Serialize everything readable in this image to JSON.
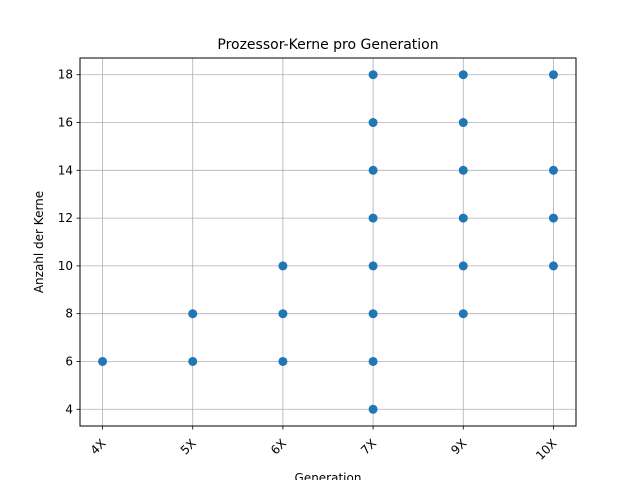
{
  "chart_data": {
    "type": "scatter",
    "title": "Prozessor-Kerne pro Generation",
    "xlabel": "Generation",
    "ylabel": "Anzahl der Kerne",
    "categories": [
      "4X",
      "5X",
      "6X",
      "7X",
      "9X",
      "10X"
    ],
    "yticks": [
      4,
      6,
      8,
      10,
      12,
      14,
      16,
      18
    ],
    "ylim": [
      3.3,
      18.7
    ],
    "grid": true,
    "marker_color": "#1f77b4",
    "points": [
      {
        "x": "4X",
        "y": 6
      },
      {
        "x": "5X",
        "y": 6
      },
      {
        "x": "5X",
        "y": 8
      },
      {
        "x": "6X",
        "y": 6
      },
      {
        "x": "6X",
        "y": 8
      },
      {
        "x": "6X",
        "y": 10
      },
      {
        "x": "7X",
        "y": 4
      },
      {
        "x": "7X",
        "y": 6
      },
      {
        "x": "7X",
        "y": 8
      },
      {
        "x": "7X",
        "y": 10
      },
      {
        "x": "7X",
        "y": 12
      },
      {
        "x": "7X",
        "y": 14
      },
      {
        "x": "7X",
        "y": 16
      },
      {
        "x": "7X",
        "y": 18
      },
      {
        "x": "9X",
        "y": 8
      },
      {
        "x": "9X",
        "y": 10
      },
      {
        "x": "9X",
        "y": 12
      },
      {
        "x": "9X",
        "y": 14
      },
      {
        "x": "9X",
        "y": 16
      },
      {
        "x": "9X",
        "y": 18
      },
      {
        "x": "10X",
        "y": 10
      },
      {
        "x": "10X",
        "y": 12
      },
      {
        "x": "10X",
        "y": 14
      },
      {
        "x": "10X",
        "y": 18
      }
    ]
  }
}
